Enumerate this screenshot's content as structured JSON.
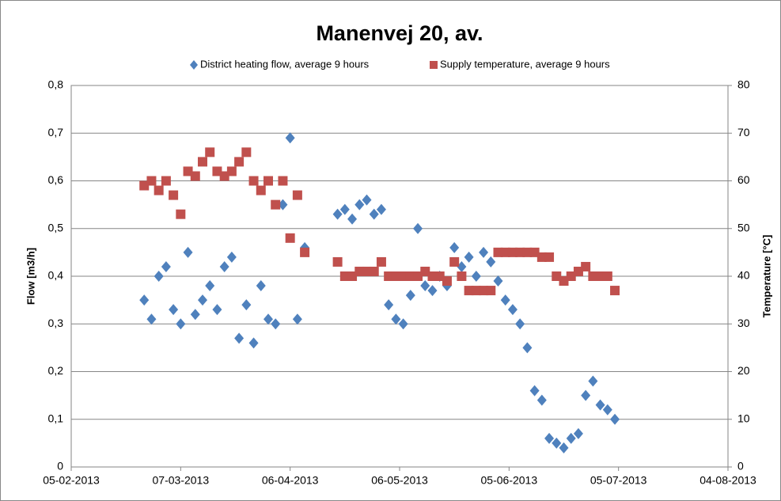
{
  "chart_data": {
    "type": "scatter",
    "title": "Manenvej 20, av.",
    "y_label": "Flow [m3/h]",
    "y2_label": "Temperature [°C]",
    "x": [
      "2013-02-25",
      "2013-02-27",
      "2013-03-01",
      "2013-03-03",
      "2013-03-05",
      "2013-03-07",
      "2013-03-09",
      "2013-03-11",
      "2013-03-13",
      "2013-03-15",
      "2013-03-17",
      "2013-03-19",
      "2013-03-21",
      "2013-03-23",
      "2013-03-25",
      "2013-03-27",
      "2013-03-29",
      "2013-03-31",
      "2013-04-02",
      "2013-04-04",
      "2013-04-06",
      "2013-04-08",
      "2013-04-10",
      "2013-04-19",
      "2013-04-21",
      "2013-04-23",
      "2013-04-25",
      "2013-04-27",
      "2013-04-29",
      "2013-05-01",
      "2013-05-03",
      "2013-05-05",
      "2013-05-07",
      "2013-05-09",
      "2013-05-11",
      "2013-05-13",
      "2013-05-15",
      "2013-05-17",
      "2013-05-19",
      "2013-05-21",
      "2013-05-23",
      "2013-05-25",
      "2013-05-27",
      "2013-05-29",
      "2013-05-31",
      "2013-06-02",
      "2013-06-04",
      "2013-06-06",
      "2013-06-08",
      "2013-06-10",
      "2013-06-12",
      "2013-06-14",
      "2013-06-16",
      "2013-06-18",
      "2013-06-20",
      "2013-06-22",
      "2013-06-24",
      "2013-06-26",
      "2013-06-28",
      "2013-06-30",
      "2013-07-02",
      "2013-07-04"
    ],
    "series": [
      {
        "name": "District heating flow, average 9 hours",
        "color": "#4f81bd",
        "marker": "diamond",
        "axis": "y",
        "values": [
          0.35,
          0.31,
          0.4,
          0.42,
          0.33,
          0.3,
          0.45,
          0.32,
          0.35,
          0.38,
          0.33,
          0.42,
          0.44,
          0.27,
          0.34,
          0.26,
          0.38,
          0.31,
          0.3,
          0.55,
          0.69,
          0.31,
          0.46,
          0.53,
          0.54,
          0.52,
          0.55,
          0.56,
          0.53,
          0.54,
          0.34,
          0.31,
          0.3,
          0.36,
          0.5,
          0.38,
          0.37,
          0.4,
          0.38,
          0.46,
          0.42,
          0.44,
          0.4,
          0.45,
          0.43,
          0.39,
          0.35,
          0.33,
          0.3,
          0.25,
          0.16,
          0.14,
          0.06,
          0.05,
          0.04,
          0.06,
          0.07,
          0.15,
          0.18,
          0.13,
          0.12,
          0.1
        ]
      },
      {
        "name": "Supply temperature, average 9 hours",
        "color": "#c0504d",
        "marker": "square",
        "axis": "y2",
        "values": [
          59,
          60,
          58,
          60,
          57,
          53,
          62,
          61,
          64,
          66,
          62,
          61,
          62,
          64,
          66,
          60,
          58,
          60,
          55,
          60,
          48,
          57,
          45,
          43,
          40,
          40,
          41,
          41,
          41,
          43,
          40,
          40,
          40,
          40,
          40,
          41,
          40,
          40,
          39,
          43,
          40,
          37,
          37,
          37,
          37,
          45,
          45,
          45,
          45,
          45,
          45,
          44,
          44,
          40,
          39,
          40,
          41,
          42,
          40,
          40,
          40,
          37
        ]
      }
    ],
    "xlim": [
      "2013-02-05",
      "2013-08-04"
    ],
    "xticks": [
      {
        "value": "2013-02-05",
        "label": "05-02-2013"
      },
      {
        "value": "2013-03-07",
        "label": "07-03-2013"
      },
      {
        "value": "2013-04-06",
        "label": "06-04-2013"
      },
      {
        "value": "2013-05-06",
        "label": "06-05-2013"
      },
      {
        "value": "2013-06-05",
        "label": "05-06-2013"
      },
      {
        "value": "2013-07-05",
        "label": "05-07-2013"
      },
      {
        "value": "2013-08-04",
        "label": "04-08-2013"
      }
    ],
    "ylim": [
      0,
      0.8
    ],
    "yticks": [
      0,
      {
        "value": 0.1,
        "label": "0,1"
      },
      {
        "value": 0.2,
        "label": "0,2"
      },
      {
        "value": 0.3,
        "label": "0,3"
      },
      {
        "value": 0.4,
        "label": "0,4"
      },
      {
        "value": 0.5,
        "label": "0,5"
      },
      {
        "value": 0.6,
        "label": "0,6"
      },
      {
        "value": 0.7,
        "label": "0,7"
      },
      {
        "value": 0.8,
        "label": "0,8"
      }
    ],
    "y2lim": [
      0,
      80
    ],
    "y2ticks": [
      0,
      10,
      20,
      30,
      40,
      50,
      60,
      70,
      80
    ],
    "grid": true,
    "legend": "top"
  }
}
